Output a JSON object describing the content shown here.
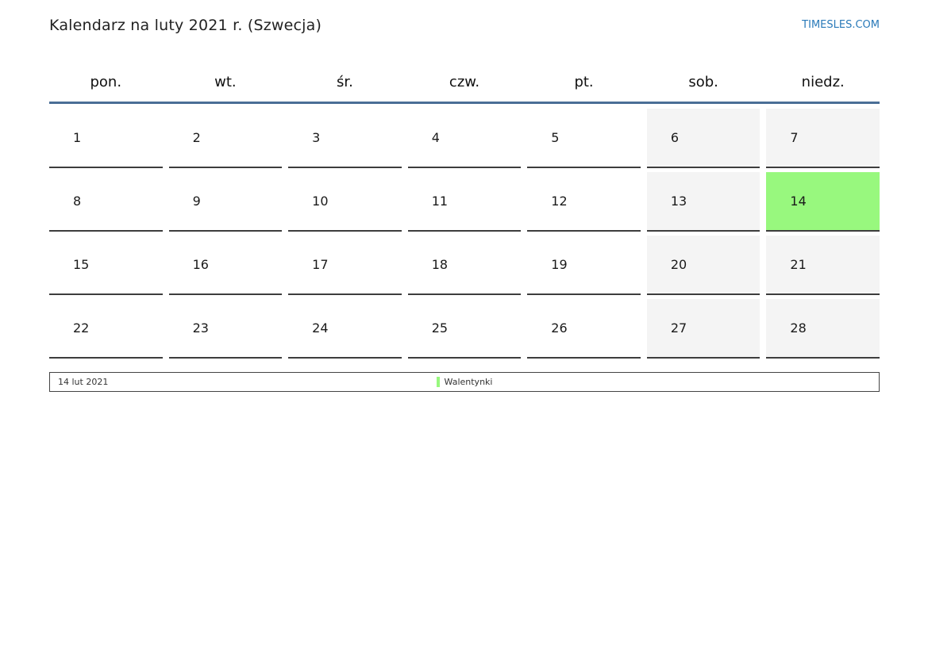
{
  "page": {
    "title": "Kalendarz na luty 2021 r. (Szwecja)",
    "brand_link": "TIMESLES.COM"
  },
  "calendar": {
    "weekday_headers": [
      "pon.",
      "wt.",
      "śr.",
      "czw.",
      "pt.",
      "sob.",
      "niedz."
    ],
    "days": [
      "1",
      "2",
      "3",
      "4",
      "5",
      "6",
      "7",
      "8",
      "9",
      "10",
      "11",
      "12",
      "13",
      "14",
      "15",
      "16",
      "17",
      "18",
      "19",
      "20",
      "21",
      "22",
      "23",
      "24",
      "25",
      "26",
      "27",
      "28"
    ],
    "weekend_days": [
      "6",
      "7",
      "13",
      "14",
      "20",
      "21",
      "27",
      "28"
    ],
    "highlighted_day": "14"
  },
  "legend": {
    "date_label": "14 lut 2021",
    "event_label": "Walentynki"
  },
  "colors": {
    "highlight": "#98f87e",
    "weekend_bg": "#f4f4f4",
    "header_line": "#4a6e96",
    "cell_border": "#3d3d3d",
    "link": "#2a7ab9"
  }
}
